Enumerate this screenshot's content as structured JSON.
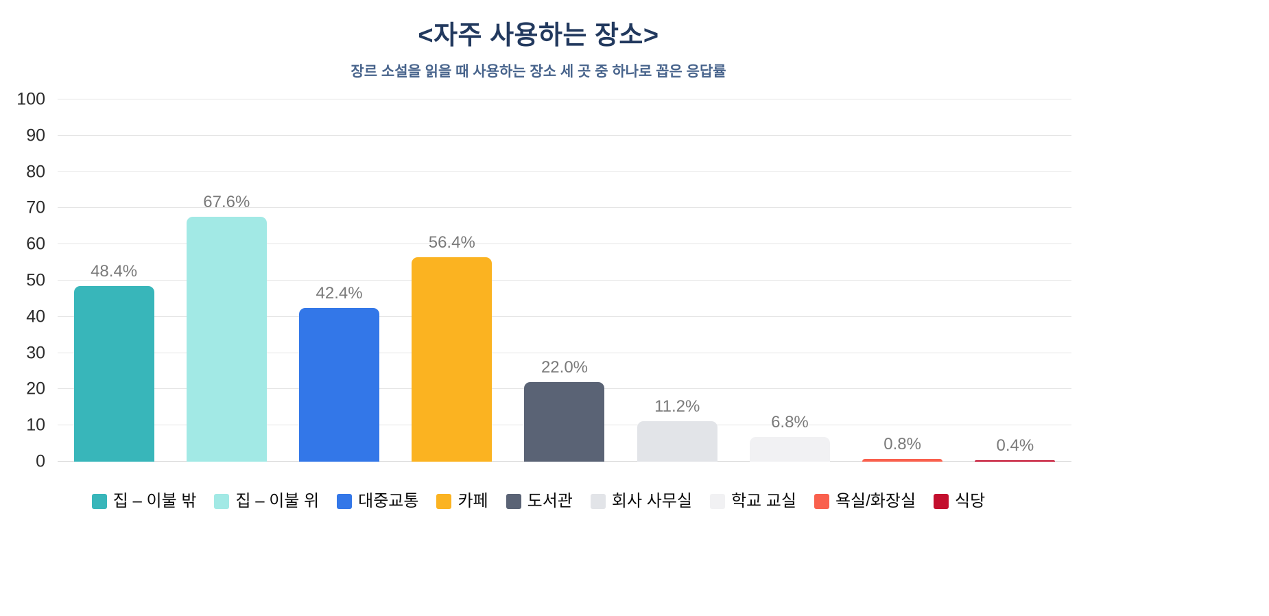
{
  "page": {
    "title": "<자주 사용하는 장소>",
    "subtitle": "장르 소설을 읽을 때 사용하는 장소 세 곳 중 하나로 꼽은 응답률"
  },
  "chart_data": {
    "type": "bar",
    "title": "<자주 사용하는 장소>",
    "subtitle": "장르 소설을 읽을 때 사용하는 장소 세 곳 중 하나로 꼽은 응답률",
    "categories": [
      "집 – 이불 밖",
      "집 – 이불 위",
      "대중교통",
      "카페",
      "도서관",
      "회사 사무실",
      "학교 교실",
      "욕실/화장실",
      "식당"
    ],
    "values": [
      48.4,
      67.6,
      42.4,
      56.4,
      22.0,
      11.2,
      6.8,
      0.8,
      0.4
    ],
    "value_labels": [
      "48.4%",
      "67.6%",
      "42.4%",
      "56.4%",
      "22.0%",
      "11.2%",
      "6.8%",
      "0.8%",
      "0.4%"
    ],
    "colors": [
      "#38b6ba",
      "#a2e9e5",
      "#3377e8",
      "#fbb321",
      "#5a6375",
      "#e2e4e8",
      "#f1f1f3",
      "#f9604d",
      "#c30f2e"
    ],
    "xlabel": "",
    "ylabel": "",
    "ylim": [
      0,
      100
    ],
    "y_ticks": [
      0,
      10,
      20,
      30,
      40,
      50,
      60,
      70,
      80,
      90,
      100
    ],
    "grid": true,
    "legend_position": "bottom"
  },
  "colors": {
    "title_text": "#22395e",
    "subtitle_text": "#48648c",
    "value_label_text": "#7a7a7a",
    "axis_label_text": "#2b2b2b",
    "gridline": "#e5e5e5",
    "background": "#ffffff"
  }
}
